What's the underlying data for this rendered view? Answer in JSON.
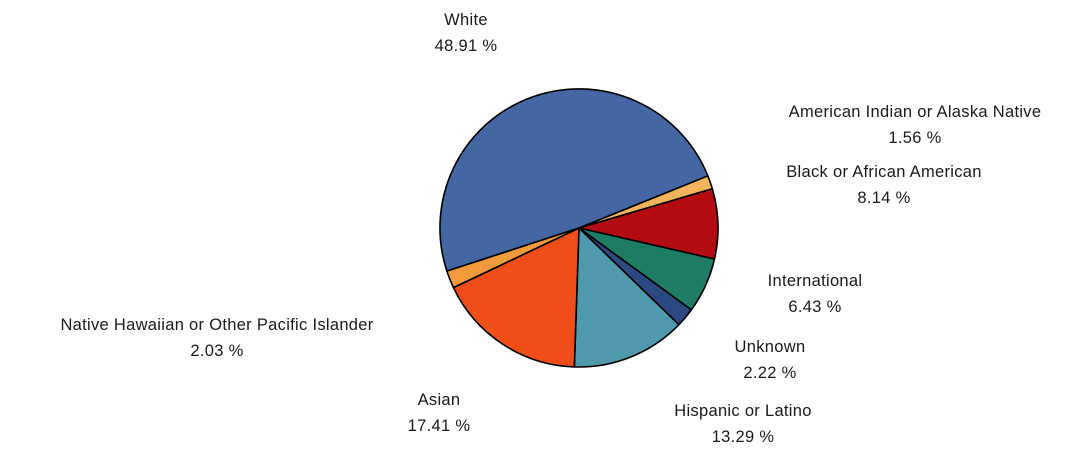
{
  "chart_data": {
    "type": "pie",
    "title": "",
    "unit": "%",
    "slices": [
      {
        "label": "White",
        "value": 48.91,
        "value_text": "48.91 %",
        "color": "#4466a3"
      },
      {
        "label": "American Indian or Alaska Native",
        "value": 1.56,
        "value_text": "1.56 %",
        "color": "#f4b45b"
      },
      {
        "label": "Black or African American",
        "value": 8.14,
        "value_text": "8.14 %",
        "color": "#b30b12"
      },
      {
        "label": "International",
        "value": 6.43,
        "value_text": "6.43 %",
        "color": "#1e7b64"
      },
      {
        "label": "Unknown",
        "value": 2.22,
        "value_text": "2.22 %",
        "color": "#2c4a82"
      },
      {
        "label": "Hispanic or Latino",
        "value": 13.29,
        "value_text": "13.29 %",
        "color": "#4f9aac"
      },
      {
        "label": "Asian",
        "value": 17.41,
        "value_text": "17.41 %",
        "color": "#f04e18"
      },
      {
        "label": "Native Hawaiian or Other Pacific Islander",
        "value": 2.03,
        "value_text": "2.03 %",
        "color": "#f29b3c"
      }
    ],
    "legend": "none",
    "labels": "outside"
  }
}
